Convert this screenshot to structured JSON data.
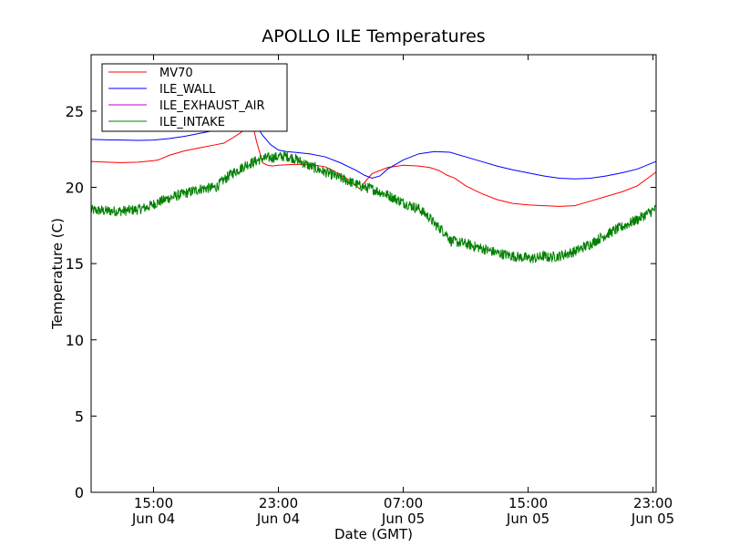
{
  "chart_data": {
    "type": "line",
    "title": "APOLLO ILE Temperatures",
    "xlabel": "Date (GMT)",
    "ylabel": "Temperature (C)",
    "x_unit": "hours since Jun 04 11:00 GMT",
    "xlim": [
      0,
      36.2
    ],
    "ylim": [
      0,
      28.7
    ],
    "yticks": [
      0,
      5,
      10,
      15,
      20,
      25
    ],
    "xticks": [
      {
        "x": 4,
        "time": "15:00",
        "date": "Jun 04"
      },
      {
        "x": 12,
        "time": "23:00",
        "date": "Jun 04"
      },
      {
        "x": 20,
        "time": "07:00",
        "date": "Jun 05"
      },
      {
        "x": 28,
        "time": "15:00",
        "date": "Jun 05"
      },
      {
        "x": 36,
        "time": "23:00",
        "date": "Jun 05"
      }
    ],
    "legend_position": "upper-left",
    "series": [
      {
        "name": "MV70",
        "color": "#ff0000",
        "x": [
          0,
          1,
          2,
          3,
          4,
          4.3,
          5,
          6,
          7,
          8,
          8.5,
          9,
          9.6,
          10,
          10.4,
          10.6,
          10.8,
          11,
          11.3,
          11.6,
          12,
          13,
          14,
          15,
          15.5,
          16,
          16.5,
          17,
          17.2,
          17.5,
          18,
          19,
          20,
          21,
          21.7,
          22.3,
          22.8,
          23.3,
          24,
          25,
          26,
          27,
          28,
          29,
          30,
          31,
          32,
          33,
          34,
          35,
          36.2
        ],
        "y": [
          21.7,
          21.65,
          21.62,
          21.65,
          21.75,
          21.8,
          22.1,
          22.4,
          22.6,
          22.8,
          22.9,
          23.2,
          23.6,
          24.0,
          23.9,
          23.0,
          22.3,
          21.6,
          21.45,
          21.4,
          21.45,
          21.5,
          21.5,
          21.35,
          21.1,
          20.8,
          20.5,
          20.1,
          19.9,
          20.3,
          20.9,
          21.3,
          21.45,
          21.4,
          21.3,
          21.1,
          20.8,
          20.6,
          20.1,
          19.6,
          19.2,
          18.95,
          18.85,
          18.8,
          18.75,
          18.8,
          19.1,
          19.4,
          19.7,
          20.1,
          21.0
        ]
      },
      {
        "name": "ILE_WALL",
        "color": "#0000ff",
        "x": [
          0,
          1,
          2,
          3,
          4,
          5,
          6,
          7,
          8,
          9,
          10,
          10.5,
          10.8,
          11,
          11.5,
          12,
          12.5,
          13,
          14,
          15,
          16,
          17,
          17.5,
          18,
          18.5,
          19,
          20,
          21,
          22,
          23,
          24,
          25,
          26,
          27,
          28,
          29,
          30,
          31,
          32,
          33,
          34,
          35,
          36.2
        ],
        "y": [
          23.15,
          23.12,
          23.1,
          23.08,
          23.1,
          23.2,
          23.35,
          23.55,
          23.75,
          23.95,
          24.05,
          24.0,
          23.7,
          23.4,
          22.8,
          22.45,
          22.35,
          22.3,
          22.2,
          22.0,
          21.6,
          21.1,
          20.8,
          20.6,
          20.75,
          21.2,
          21.8,
          22.2,
          22.35,
          22.3,
          22.0,
          21.7,
          21.4,
          21.15,
          20.95,
          20.75,
          20.6,
          20.55,
          20.6,
          20.75,
          20.95,
          21.2,
          21.7
        ]
      },
      {
        "name": "ILE_EXHAUST_AIR",
        "color": "#bf00bf",
        "x": [],
        "y": []
      },
      {
        "name": "ILE_INTAKE",
        "color": "#008000",
        "noisy": true,
        "x": [
          0,
          1,
          2,
          3,
          3.6,
          4,
          5,
          6,
          7,
          8,
          8.4,
          9,
          10,
          11,
          12,
          12.5,
          13,
          14,
          15,
          16,
          17,
          17.5,
          18,
          19,
          20,
          21,
          21.7,
          22,
          22.5,
          22.9,
          23,
          23.5,
          24,
          25,
          26,
          27,
          28,
          28.5,
          29,
          29.3,
          30,
          31,
          32,
          33,
          34,
          35,
          36.2
        ],
        "y": [
          18.5,
          18.45,
          18.45,
          18.55,
          18.7,
          18.9,
          19.3,
          19.6,
          19.9,
          20.0,
          20.4,
          20.9,
          21.5,
          21.9,
          22.0,
          22.05,
          21.9,
          21.4,
          21.0,
          20.6,
          20.2,
          20.0,
          19.9,
          19.5,
          19.0,
          18.6,
          18.0,
          17.6,
          17.2,
          16.8,
          16.5,
          16.4,
          16.3,
          16.0,
          15.7,
          15.5,
          15.35,
          15.35,
          15.5,
          15.4,
          15.5,
          15.8,
          16.3,
          16.9,
          17.4,
          17.9,
          18.6
        ]
      }
    ]
  }
}
